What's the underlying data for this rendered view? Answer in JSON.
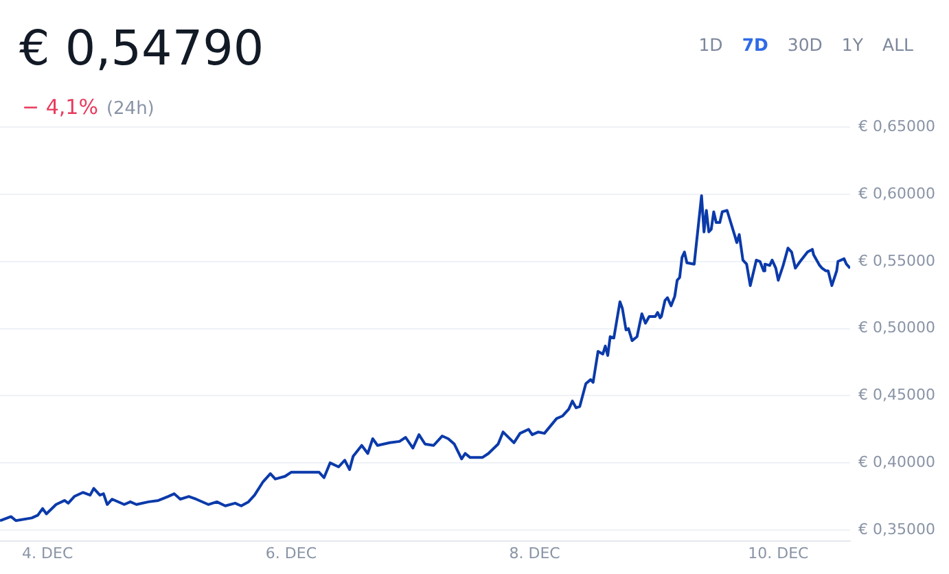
{
  "chart_data": {
    "type": "line",
    "title": "€ 0,54790",
    "subtitle": "− 4,1%",
    "annotations": [
      "(24h)",
      "1D",
      "7D",
      "30D",
      "1Y",
      "ALL"
    ],
    "x": [
      "--12-03T14:38",
      "--12-03T16:48",
      "--12-03T17:46",
      "--12-03T20:53",
      "--12-03T22:05",
      "--12-03T23:02",
      "--12-03T23:46",
      "--12-04T01:41",
      "--12-04T03:22",
      "--12-04T04:05",
      "--12-04T05:17",
      "--12-04T06:58",
      "--12-04T08:24",
      "--12-04T09:07",
      "--12-04T10:19",
      "--12-04T11:02",
      "--12-04T11:46",
      "--12-04T12:43",
      "--12-04T15:07",
      "--12-04T16:19",
      "--12-04T17:31",
      "--12-04T19:55",
      "--12-04T21:50",
      "--12-04T23:46",
      "--12-05T00:58",
      "--12-05T02:10",
      "--12-05T03:50",
      "--12-05T05:17",
      "--12-05T07:41",
      "--12-05T09:22",
      "--12-05T11:02",
      "--12-05T12:58",
      "--12-05T14:10",
      "--12-05T15:36",
      "--12-05T16:48",
      "--12-05T18:29",
      "--12-05T19:55",
      "--12-05T20:53",
      "--12-05T22:48",
      "--12-06T00:00",
      "--12-06T01:12",
      "--12-06T03:36",
      "--12-06T05:31",
      "--12-06T06:29",
      "--12-06T07:41",
      "--12-06T09:22",
      "--12-06T10:34",
      "--12-06T11:31",
      "--12-06T12:14",
      "--12-06T13:55",
      "--12-06T15:07",
      "--12-06T16:05",
      "--12-06T17:02",
      "--12-06T19:26",
      "--12-06T21:22",
      "--12-06T22:34",
      "--12-07T00:00",
      "--12-07T01:12",
      "--12-07T02:24",
      "--12-07T04:05",
      "--12-07T05:46",
      "--12-07T06:58",
      "--12-07T08:10",
      "--12-07T09:36",
      "--12-07T10:19",
      "--12-07T11:17",
      "--12-07T13:41",
      "--12-07T14:53",
      "--12-07T16:48",
      "--12-07T17:46",
      "--12-07T19:55",
      "--12-07T21:07",
      "--12-07T22:48",
      "--12-07T23:31",
      "--12-08T00:43",
      "--12-08T01:55",
      "--12-08T04:19",
      "--12-08T05:31",
      "--12-08T06:43",
      "--12-08T07:26",
      "--12-08T08:10",
      "--12-08T08:53",
      "--12-08T10:05",
      "--12-08T11:02",
      "--12-08T11:31",
      "--12-08T12:29",
      "--12-08T13:26",
      "--12-08T13:55",
      "--12-08T14:24",
      "--12-08T14:53",
      "--12-08T15:36",
      "--12-08T16:48",
      "--12-08T17:17",
      "--12-08T18:00",
      "--12-08T18:29",
      "--12-08T19:12",
      "--12-08T20:10",
      "--12-08T21:07",
      "--12-08T21:50",
      "--12-08T22:34",
      "--12-08T23:46",
      "--12-09T00:14",
      "--12-09T00:43",
      "--12-09T00:58",
      "--12-09T01:41",
      "--12-09T02:10",
      "--12-09T02:53",
      "--12-09T03:36",
      "--12-09T04:05",
      "--12-09T04:34",
      "--12-09T05:02",
      "--12-09T05:31",
      "--12-09T06:00",
      "--12-09T07:26",
      "--12-09T08:53",
      "--12-09T09:22",
      "--12-09T09:50",
      "--12-09T10:19",
      "--12-09T10:48",
      "--12-09T11:17",
      "--12-09T11:46",
      "--12-09T12:29",
      "--12-09T12:58",
      "--12-09T13:55",
      "--12-09T15:22",
      "--12-09T15:50",
      "--12-09T16:19",
      "--12-09T17:02",
      "--12-09T17:46",
      "--12-09T18:29",
      "--12-09T19:41",
      "--12-09T20:24",
      "--12-09T21:07",
      "--12-09T21:22",
      "--12-09T22:19",
      "--12-09T22:48",
      "--12-09T23:31",
      "--12-10T00:00",
      "--12-10T00:58",
      "--12-10T01:55",
      "--12-10T02:38",
      "--12-10T03:22",
      "--12-10T04:19",
      "--12-10T05:46",
      "--12-10T06:43",
      "--12-10T06:58",
      "--12-10T08:10",
      "--12-10T08:38",
      "--12-10T09:22",
      "--12-10T09:50",
      "--12-10T10:34",
      "--12-10T11:31",
      "--12-10T11:46",
      "--12-10T12:58",
      "--12-10T13:26",
      "--12-10T14:10"
    ],
    "series": [
      {
        "color": "#0b3aaa",
        "values": [
          0.357,
          0.36,
          0.357,
          0.359,
          0.361,
          0.366,
          0.362,
          0.369,
          0.372,
          0.37,
          0.375,
          0.378,
          0.376,
          0.381,
          0.376,
          0.377,
          0.369,
          0.373,
          0.369,
          0.371,
          0.369,
          0.371,
          0.372,
          0.375,
          0.377,
          0.373,
          0.375,
          0.373,
          0.369,
          0.371,
          0.368,
          0.37,
          0.368,
          0.371,
          0.376,
          0.386,
          0.392,
          0.388,
          0.39,
          0.393,
          0.393,
          0.393,
          0.393,
          0.389,
          0.4,
          0.397,
          0.402,
          0.395,
          0.405,
          0.413,
          0.407,
          0.418,
          0.413,
          0.415,
          0.416,
          0.419,
          0.411,
          0.421,
          0.414,
          0.413,
          0.42,
          0.418,
          0.414,
          0.403,
          0.407,
          0.404,
          0.404,
          0.407,
          0.414,
          0.423,
          0.415,
          0.422,
          0.425,
          0.421,
          0.423,
          0.422,
          0.433,
          0.435,
          0.44,
          0.446,
          0.441,
          0.442,
          0.459,
          0.462,
          0.46,
          0.483,
          0.481,
          0.487,
          0.48,
          0.494,
          0.493,
          0.52,
          0.515,
          0.499,
          0.5,
          0.491,
          0.494,
          0.511,
          0.504,
          0.509,
          0.509,
          0.512,
          0.508,
          0.509,
          0.521,
          0.523,
          0.517,
          0.524,
          0.536,
          0.538,
          0.553,
          0.557,
          0.549,
          0.548,
          0.599,
          0.572,
          0.588,
          0.572,
          0.574,
          0.587,
          0.579,
          0.579,
          0.587,
          0.588,
          0.57,
          0.564,
          0.57,
          0.551,
          0.548,
          0.532,
          0.551,
          0.55,
          0.543,
          0.548,
          0.547,
          0.551,
          0.545,
          0.536,
          0.547,
          0.56,
          0.557,
          0.545,
          0.55,
          0.557,
          0.559,
          0.555,
          0.547,
          0.545,
          0.543,
          0.543,
          0.532,
          0.543,
          0.55,
          0.552,
          0.548,
          0.545
        ]
      }
    ],
    "xlim": [
      "--12-03T14:38",
      "--12-10T14:10"
    ],
    "xticks": [
      {
        "value": "--12-04",
        "label": "4. DEC"
      },
      {
        "value": "--12-06",
        "label": "6. DEC"
      },
      {
        "value": "--12-08",
        "label": "8. DEC"
      },
      {
        "value": "--12-10",
        "label": "10. DEC"
      }
    ],
    "ylim": [
      0.342,
      0.65
    ],
    "yticks": [
      {
        "value": 0.35,
        "label": "€ 0,35000"
      },
      {
        "value": 0.4,
        "label": "€ 0,40000"
      },
      {
        "value": 0.45,
        "label": "€ 0,45000"
      },
      {
        "value": 0.5,
        "label": "€ 0,50000"
      },
      {
        "value": 0.55,
        "label": "€ 0,55000"
      },
      {
        "value": 0.6,
        "label": "€ 0,60000"
      },
      {
        "value": 0.65,
        "label": "€ 0,65000"
      }
    ],
    "grid": "y",
    "marker": "none",
    "line_style": "solid"
  }
}
